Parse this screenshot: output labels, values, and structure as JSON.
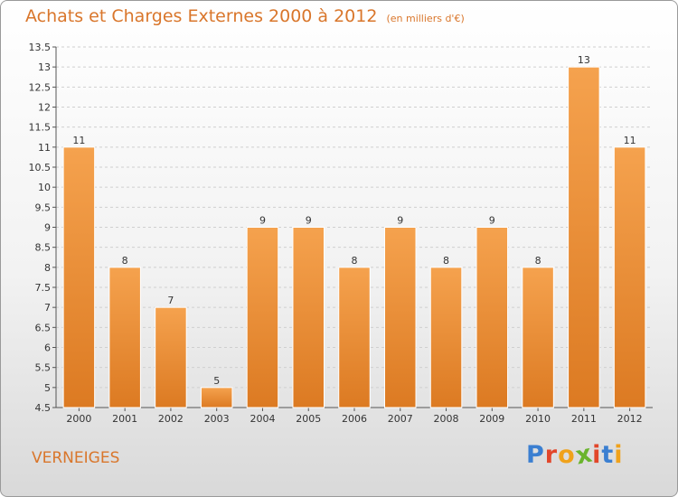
{
  "header": {
    "title": "Achats et Charges Externes 2000 à 2012",
    "subtitle": "(en milliers d'€)"
  },
  "footer": {
    "city": "VERNEIGES",
    "logo": "Proxiti",
    "logo_colors": [
      "#3b7fd1",
      "#e2462a",
      "#f0a21b",
      "#6ab42d",
      "#e2462a",
      "#3b7fd1",
      "#f0a21b"
    ]
  },
  "colors": {
    "bar_top": "#f5a24e",
    "bar_bottom": "#dc7a22",
    "title": "#d9762b",
    "grid": "#cfcfcf"
  },
  "chart_data": {
    "type": "bar",
    "categories": [
      "2000",
      "2001",
      "2002",
      "2003",
      "2004",
      "2005",
      "2006",
      "2007",
      "2008",
      "2009",
      "2010",
      "2011",
      "2012"
    ],
    "values": [
      11,
      8,
      7,
      5,
      9,
      9,
      8,
      9,
      8,
      9,
      8,
      13,
      11
    ],
    "data_labels": [
      "11",
      "8",
      "7",
      "5",
      "9",
      "9",
      "8",
      "9",
      "8",
      "9",
      "8",
      "13",
      "11"
    ],
    "yticks": [
      4.5,
      5,
      5.5,
      6,
      6.5,
      7,
      7.5,
      8,
      8.5,
      9,
      9.5,
      10,
      10.5,
      11,
      11.5,
      12,
      12.5,
      13,
      13.5
    ],
    "ytick_labels": [
      "4.5",
      "5",
      "5.5",
      "6",
      "6.5",
      "7",
      "7.5",
      "8",
      "8.5",
      "9",
      "9.5",
      "10",
      "10.5",
      "11",
      "11.5",
      "12",
      "12.5",
      "13",
      "13.5"
    ],
    "ylim": [
      4.5,
      13.5
    ],
    "grid": true,
    "title": "Achats et Charges Externes 2000 à 2012",
    "xlabel": "",
    "ylabel": ""
  }
}
